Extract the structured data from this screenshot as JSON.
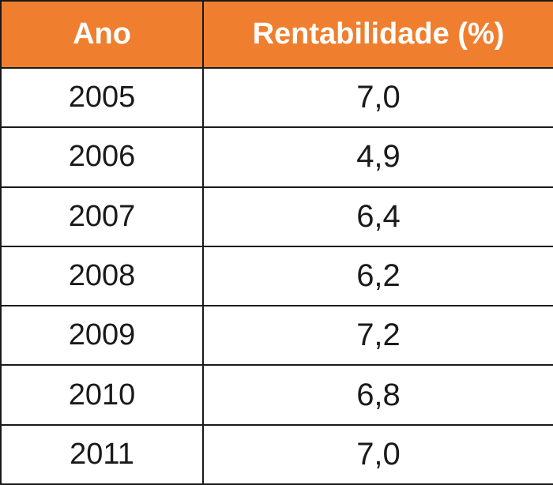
{
  "table": {
    "header_color": "#ef7f2f",
    "columns": [
      "Ano",
      "Rentabilidade (%)"
    ],
    "rows": [
      [
        "2005",
        "7,0"
      ],
      [
        "2006",
        "4,9"
      ],
      [
        "2007",
        "6,4"
      ],
      [
        "2008",
        "6,2"
      ],
      [
        "2009",
        "7,2"
      ],
      [
        "2010",
        "6,8"
      ],
      [
        "2011",
        "7,0"
      ]
    ]
  }
}
